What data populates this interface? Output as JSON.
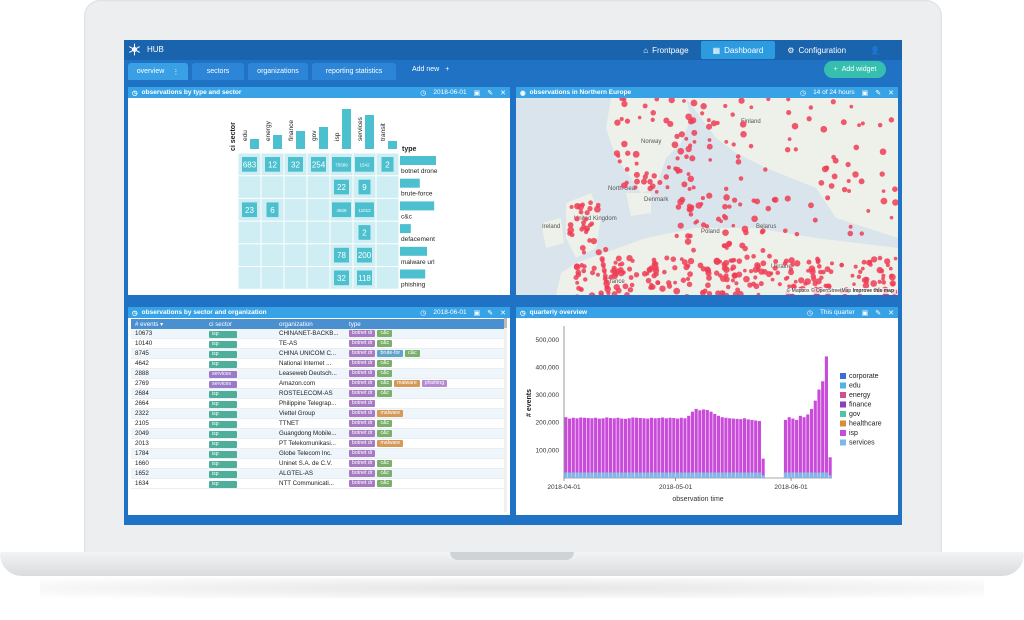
{
  "app": {
    "title": "HUB"
  },
  "nav": [
    {
      "label": "Frontpage",
      "icon": "home-icon"
    },
    {
      "label": "Dashboard",
      "icon": "dashboard-icon"
    },
    {
      "label": "Configuration",
      "icon": "gear-icon"
    },
    {
      "label": "",
      "icon": "user-icon"
    }
  ],
  "tabs": [
    "overview",
    "sectors",
    "organizations",
    "reporting statistics"
  ],
  "add_new": "Add new",
  "add_widget": "Add widget",
  "colors": {
    "accent": "#37a3e6",
    "teal": "#4dc0cf",
    "violet": "#b34dd6",
    "map_dot": "#ef3d55"
  },
  "panels": {
    "matrix": {
      "title": "observations by type and sector",
      "date": "2018-06-01",
      "ylabel": "ci sector",
      "xlabel": "type",
      "sectors": [
        "edu",
        "energy",
        "finance",
        "gov",
        "isp",
        "services",
        "transit"
      ],
      "sector_totals": [
        0.25,
        0.35,
        0.45,
        0.55,
        1.0,
        0.85,
        0.2
      ],
      "types": [
        "botnet drone",
        "brute-force",
        "c&c",
        "defacement",
        "malware url",
        "phishing"
      ],
      "type_totals": [
        1.0,
        0.55,
        0.95,
        0.3,
        0.75,
        0.7
      ],
      "cells": [
        [
          "683",
          "12",
          "32",
          "254",
          "75589",
          "1542",
          "2"
        ],
        [
          "",
          "",
          "",
          "",
          "22",
          "9",
          ""
        ],
        [
          "23",
          "6",
          "",
          "",
          "4928",
          "11012",
          ""
        ],
        [
          "",
          "",
          "",
          "",
          "",
          "2",
          ""
        ],
        [
          "",
          "",
          "",
          "",
          "78",
          "200",
          ""
        ],
        [
          "",
          "",
          "",
          "",
          "32",
          "118",
          ""
        ]
      ]
    },
    "map": {
      "title": "observations in Northern Europe",
      "range": "14 of 24 hours",
      "labels": [
        "Norway",
        "Finland",
        "North Sea",
        "Denmark",
        "United Kingdom",
        "Ireland",
        "Belarus",
        "Ukraine",
        "France",
        "Poland"
      ],
      "attribution": "© Mapbox © OpenStreetMap",
      "improve": "Improve this map"
    },
    "table": {
      "title": "observations by sector and organization",
      "date": "2018-06-01",
      "columns": [
        "# events",
        "ci sector",
        "organization",
        "type"
      ],
      "rows": [
        {
          "events": "10673",
          "sector": "isp",
          "org": "CHINANET-BACKB...",
          "types": [
            "botnet dr",
            "c&c"
          ]
        },
        {
          "events": "10140",
          "sector": "isp",
          "org": "TE-AS",
          "types": [
            "botnet dr",
            "c&c"
          ]
        },
        {
          "events": "8745",
          "sector": "isp",
          "org": "CHINA UNICOM C...",
          "types": [
            "botnet dr",
            "brute-for",
            "c&c"
          ]
        },
        {
          "events": "4642",
          "sector": "isp",
          "org": "National Internet ...",
          "types": [
            "botnet dr",
            "c&c"
          ]
        },
        {
          "events": "2888",
          "sector": "services",
          "org": "Leaseweb Deutsch...",
          "types": [
            "botnet dr",
            "c&c"
          ]
        },
        {
          "events": "2769",
          "sector": "services",
          "org": "Amazon.com",
          "types": [
            "botnet dr",
            "c&c",
            "malware",
            "phishing"
          ]
        },
        {
          "events": "2684",
          "sector": "isp",
          "org": "ROSTELECOM-AS",
          "types": [
            "botnet dr",
            "c&c"
          ]
        },
        {
          "events": "2664",
          "sector": "isp",
          "org": "Philippine Telegrap...",
          "types": [
            "botnet dr"
          ]
        },
        {
          "events": "2322",
          "sector": "isp",
          "org": "Viettel Group",
          "types": [
            "botnet dr",
            "malware"
          ]
        },
        {
          "events": "2105",
          "sector": "isp",
          "org": "TTNET",
          "types": [
            "botnet dr",
            "c&c"
          ]
        },
        {
          "events": "2049",
          "sector": "isp",
          "org": "Guangdong Mobile...",
          "types": [
            "botnet dr",
            "c&c"
          ]
        },
        {
          "events": "2013",
          "sector": "isp",
          "org": "PT Telekomunikasi...",
          "types": [
            "botnet dr",
            "malware"
          ]
        },
        {
          "events": "1784",
          "sector": "isp",
          "org": "Globe Telecom Inc.",
          "types": [
            "botnet dr"
          ]
        },
        {
          "events": "1660",
          "sector": "isp",
          "org": "Uninet S.A. de C.V.",
          "types": [
            "botnet dr",
            "c&c"
          ]
        },
        {
          "events": "1652",
          "sector": "isp",
          "org": "ALGTEL-AS",
          "types": [
            "botnet dr",
            "c&c"
          ]
        },
        {
          "events": "1634",
          "sector": "isp",
          "org": "NTT Communicati...",
          "types": [
            "botnet dr",
            "c&c"
          ]
        }
      ]
    },
    "quarterly": {
      "title": "quarterly overview",
      "range": "This quarter"
    }
  },
  "chart_data": {
    "type": "bar",
    "ylabel": "# events",
    "xlabel": "observation time",
    "ylim": [
      0,
      550000
    ],
    "yticks": [
      "100,000",
      "200,000",
      "300,000",
      "400,000",
      "500,000"
    ],
    "xticks": [
      "2018-04-01",
      "2018-05-01",
      "2018-06-01"
    ],
    "legend": [
      "corporate",
      "edu",
      "energy",
      "finance",
      "gov",
      "healthcare",
      "isp",
      "services"
    ],
    "legend_colors": [
      "#3b6ed1",
      "#4fb3e8",
      "#d14f8e",
      "#8a3fc1",
      "#51c4a7",
      "#d98c3b",
      "#c84bd9",
      "#7fb8e6"
    ],
    "start_date": "2018-04-01",
    "series": [
      {
        "name": "isp",
        "values": [
          200000,
          195000,
          198000,
          196000,
          199000,
          198000,
          197000,
          196000,
          198000,
          195000,
          196000,
          199000,
          197000,
          196000,
          198000,
          195000,
          194000,
          196000,
          199000,
          198000,
          197000,
          196000,
          195000,
          198000,
          196000,
          197000,
          199000,
          196000,
          198000,
          197000,
          195000,
          198000,
          196000,
          205000,
          220000,
          230000,
          225000,
          228000,
          226000,
          220000,
          212000,
          205000,
          200000,
          198000,
          196000,
          195000,
          194000,
          193000,
          196000,
          192000,
          190000,
          188000,
          186000,
          60000,
          0,
          0,
          0,
          0,
          0,
          190000,
          200000,
          195000,
          190000,
          205000,
          200000,
          210000,
          230000,
          260000,
          300000,
          330000,
          420000,
          65000
        ]
      },
      {
        "name": "services",
        "values": [
          20000,
          20000,
          20000,
          20000,
          20000,
          20000,
          20000,
          20000,
          20000,
          20000,
          20000,
          20000,
          20000,
          20000,
          20000,
          20000,
          20000,
          20000,
          20000,
          20000,
          20000,
          20000,
          20000,
          20000,
          20000,
          20000,
          20000,
          20000,
          20000,
          20000,
          20000,
          20000,
          20000,
          20000,
          20000,
          20000,
          20000,
          20000,
          20000,
          20000,
          20000,
          20000,
          20000,
          20000,
          20000,
          20000,
          20000,
          20000,
          20000,
          20000,
          20000,
          20000,
          20000,
          10000,
          0,
          0,
          0,
          0,
          0,
          20000,
          20000,
          20000,
          20000,
          20000,
          20000,
          20000,
          20000,
          20000,
          20000,
          20000,
          20000,
          10000
        ]
      }
    ]
  }
}
